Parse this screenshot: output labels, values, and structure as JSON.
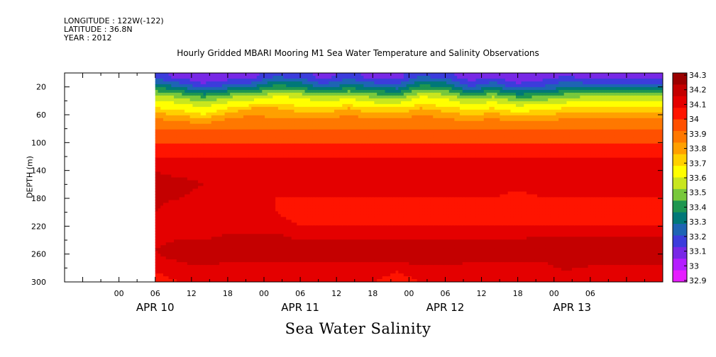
{
  "header": {
    "longitude_line": "LONGITUDE : 122W(-122)",
    "latitude_line": "LATITUDE : 36.8N",
    "year_line": "YEAR : 2012"
  },
  "chart_data": {
    "type": "heatmap",
    "title": "Hourly Gridded MBARI Mooring M1 Sea Water Temperature and Salinity Observations",
    "subtitle": "Sea Water Salinity",
    "ylabel": "DEPTH (m)",
    "xlabel": "",
    "x_range_hours": [
      -9,
      90
    ],
    "data_start_hour": 6,
    "x_ticks": [
      {
        "hour": 0,
        "label": "00"
      },
      {
        "hour": 6,
        "label": "06"
      },
      {
        "hour": 12,
        "label": "12"
      },
      {
        "hour": 18,
        "label": "18"
      },
      {
        "hour": 24,
        "label": "00"
      },
      {
        "hour": 30,
        "label": "06"
      },
      {
        "hour": 36,
        "label": "12"
      },
      {
        "hour": 42,
        "label": "18"
      },
      {
        "hour": 48,
        "label": "00"
      },
      {
        "hour": 54,
        "label": "06"
      },
      {
        "hour": 60,
        "label": "12"
      },
      {
        "hour": 66,
        "label": "18"
      },
      {
        "hour": 72,
        "label": "00"
      },
      {
        "hour": 78,
        "label": "06"
      }
    ],
    "date_labels": [
      {
        "hour": 6,
        "label": "APR 10"
      },
      {
        "hour": 30,
        "label": "APR 11"
      },
      {
        "hour": 54,
        "label": "APR 12"
      },
      {
        "hour": 75,
        "label": "APR 13"
      }
    ],
    "ylim": [
      300,
      0
    ],
    "y_ticks": [
      20,
      60,
      100,
      140,
      180,
      220,
      260,
      300
    ],
    "depths": [
      5,
      20,
      35,
      50,
      65,
      80,
      100,
      120,
      140,
      160,
      180,
      200,
      220,
      240,
      255,
      270,
      285,
      300
    ],
    "profile": [
      {
        "hour": 6,
        "values": [
          33.25,
          33.5,
          33.75,
          33.9,
          34.0,
          34.05,
          34.1,
          34.15,
          34.2,
          34.22,
          34.22,
          34.2,
          34.15,
          34.18,
          34.2,
          34.18,
          34.15,
          34.12
        ]
      },
      {
        "hour": 10,
        "values": [
          33.15,
          33.4,
          33.7,
          33.88,
          33.98,
          34.05,
          34.1,
          34.15,
          34.18,
          34.22,
          34.2,
          34.15,
          34.15,
          34.2,
          34.25,
          34.2,
          34.18,
          34.15
        ]
      },
      {
        "hour": 14,
        "values": [
          33.1,
          33.25,
          33.6,
          33.82,
          33.95,
          34.05,
          34.1,
          34.15,
          34.18,
          34.2,
          34.18,
          34.15,
          34.15,
          34.2,
          34.25,
          34.22,
          34.18,
          34.18
        ]
      },
      {
        "hour": 18,
        "values": [
          33.12,
          33.35,
          33.7,
          33.9,
          34.0,
          34.05,
          34.1,
          34.15,
          34.18,
          34.18,
          34.15,
          34.15,
          34.18,
          34.22,
          34.25,
          34.2,
          34.18,
          34.15
        ]
      },
      {
        "hour": 22,
        "values": [
          33.15,
          33.4,
          33.75,
          33.95,
          34.02,
          34.05,
          34.1,
          34.15,
          34.18,
          34.2,
          34.18,
          34.15,
          34.18,
          34.22,
          34.24,
          34.2,
          34.18,
          34.15
        ]
      },
      {
        "hour": 26,
        "values": [
          33.3,
          33.55,
          33.82,
          33.95,
          34.0,
          34.05,
          34.1,
          34.15,
          34.18,
          34.18,
          34.15,
          34.15,
          34.18,
          34.22,
          34.24,
          34.2,
          34.18,
          34.18
        ]
      },
      {
        "hour": 30,
        "values": [
          33.25,
          33.5,
          33.8,
          33.92,
          34.0,
          34.05,
          34.1,
          34.15,
          34.18,
          34.18,
          34.15,
          34.12,
          34.15,
          34.2,
          34.24,
          34.2,
          34.18,
          34.18
        ]
      },
      {
        "hour": 34,
        "values": [
          33.15,
          33.35,
          33.72,
          33.9,
          34.0,
          34.05,
          34.1,
          34.15,
          34.18,
          34.2,
          34.15,
          34.12,
          34.15,
          34.2,
          34.22,
          34.2,
          34.18,
          34.15
        ]
      },
      {
        "hour": 38,
        "values": [
          33.25,
          33.48,
          33.78,
          33.95,
          34.02,
          34.05,
          34.1,
          34.15,
          34.18,
          34.2,
          34.15,
          34.12,
          34.15,
          34.2,
          34.22,
          34.2,
          34.18,
          34.15
        ]
      },
      {
        "hour": 42,
        "values": [
          33.15,
          33.4,
          33.7,
          33.9,
          34.0,
          34.05,
          34.1,
          34.15,
          34.18,
          34.18,
          34.15,
          34.12,
          34.15,
          34.2,
          34.22,
          34.2,
          34.18,
          34.15
        ]
      },
      {
        "hour": 46,
        "values": [
          33.15,
          33.35,
          33.65,
          33.9,
          34.0,
          34.05,
          34.1,
          34.15,
          34.18,
          34.2,
          34.15,
          34.12,
          34.15,
          34.2,
          34.22,
          34.2,
          34.15,
          34.12
        ]
      },
      {
        "hour": 50,
        "values": [
          33.3,
          33.55,
          33.82,
          33.95,
          34.02,
          34.05,
          34.1,
          34.15,
          34.18,
          34.2,
          34.15,
          34.12,
          34.15,
          34.2,
          34.25,
          34.22,
          34.18,
          34.15
        ]
      },
      {
        "hour": 54,
        "values": [
          33.25,
          33.5,
          33.78,
          33.92,
          34.0,
          34.05,
          34.1,
          34.15,
          34.18,
          34.2,
          34.15,
          34.12,
          34.15,
          34.2,
          34.25,
          34.22,
          34.18,
          34.15
        ]
      },
      {
        "hour": 58,
        "values": [
          33.12,
          33.3,
          33.65,
          33.88,
          33.98,
          34.05,
          34.1,
          34.15,
          34.18,
          34.18,
          34.15,
          34.12,
          34.15,
          34.2,
          34.22,
          34.2,
          34.18,
          34.15
        ]
      },
      {
        "hour": 62,
        "values": [
          33.18,
          33.4,
          33.72,
          33.9,
          34.0,
          34.05,
          34.1,
          34.15,
          34.18,
          34.18,
          34.15,
          34.12,
          34.15,
          34.2,
          34.23,
          34.2,
          34.18,
          34.15
        ]
      },
      {
        "hour": 66,
        "values": [
          33.1,
          33.25,
          33.6,
          33.85,
          33.97,
          34.05,
          34.1,
          34.15,
          34.18,
          34.18,
          34.12,
          34.1,
          34.15,
          34.2,
          34.22,
          34.2,
          34.18,
          34.15
        ]
      },
      {
        "hour": 70,
        "values": [
          33.15,
          33.3,
          33.62,
          33.88,
          33.98,
          34.05,
          34.1,
          34.15,
          34.18,
          34.18,
          34.15,
          34.12,
          34.15,
          34.22,
          34.24,
          34.2,
          34.18,
          34.18
        ]
      },
      {
        "hour": 74,
        "values": [
          33.2,
          33.4,
          33.7,
          33.9,
          34.0,
          34.05,
          34.1,
          34.15,
          34.18,
          34.18,
          34.15,
          34.12,
          34.15,
          34.22,
          34.25,
          34.22,
          34.2,
          34.18
        ]
      },
      {
        "hour": 78,
        "values": [
          33.15,
          33.38,
          33.72,
          33.92,
          34.0,
          34.05,
          34.1,
          34.15,
          34.18,
          34.18,
          34.15,
          34.12,
          34.15,
          34.22,
          34.24,
          34.22,
          34.18,
          34.18
        ]
      }
    ],
    "colorbar": {
      "levels": [
        "34.3",
        "34.2",
        "34.1",
        "34",
        "33.9",
        "33.8",
        "33.7",
        "33.6",
        "33.5",
        "33.4",
        "33.3",
        "33.2",
        "33.1",
        "33",
        "32.9"
      ],
      "colors": [
        "#9b0000",
        "#c40000",
        "#e40000",
        "#ff1400",
        "#ff5000",
        "#ff7800",
        "#ffa000",
        "#ffd000",
        "#ffff00",
        "#c8e61e",
        "#78c83c",
        "#1e9650",
        "#007878",
        "#1e64b4",
        "#3c3cdc",
        "#7828e6",
        "#b41eff",
        "#e61eff"
      ],
      "value_bounds": [
        34.3,
        34.25,
        34.2,
        34.15,
        34.1,
        34.05,
        34.0,
        33.95,
        33.9,
        33.8,
        33.7,
        33.6,
        33.5,
        33.4,
        33.3,
        33.2,
        33.1,
        33.0,
        32.9
      ]
    }
  }
}
